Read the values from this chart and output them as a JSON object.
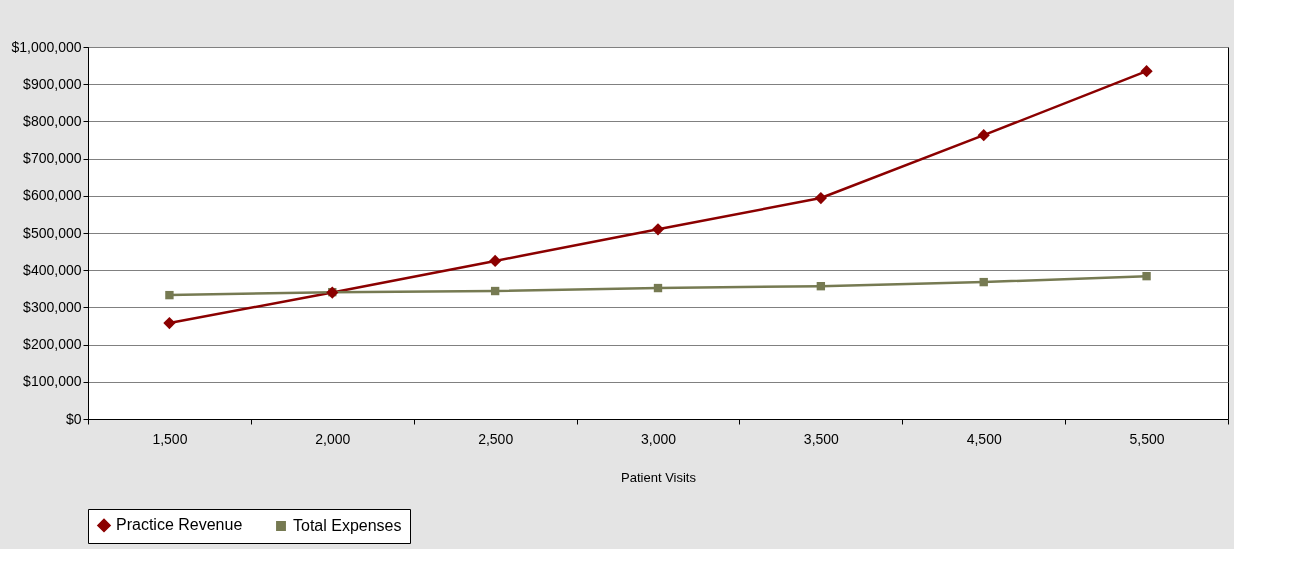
{
  "chart_data": {
    "type": "line",
    "xlabel": "Patient Visits",
    "categories": [
      "1,500",
      "2,000",
      "2,500",
      "3,000",
      "3,500",
      "4,500",
      "5,500"
    ],
    "series": [
      {
        "name": "Practice Revenue",
        "color": "#8b0000",
        "marker": "diamond",
        "values": [
          258000,
          340000,
          425000,
          510000,
          594000,
          763000,
          935000
        ]
      },
      {
        "name": "Total Expenses",
        "color": "#767a52",
        "marker": "square",
        "values": [
          333000,
          341000,
          344000,
          352000,
          357000,
          368000,
          384000
        ]
      }
    ],
    "ylim": [
      0,
      1000000
    ],
    "yticks": [
      {
        "value": 0,
        "label": "$0"
      },
      {
        "value": 100000,
        "label": "$100,000"
      },
      {
        "value": 200000,
        "label": "$200,000"
      },
      {
        "value": 300000,
        "label": "$300,000"
      },
      {
        "value": 400000,
        "label": "$400,000"
      },
      {
        "value": 500000,
        "label": "$500,000"
      },
      {
        "value": 600000,
        "label": "$600,000"
      },
      {
        "value": 700000,
        "label": "$700,000"
      },
      {
        "value": 800000,
        "label": "$800,000"
      },
      {
        "value": 900000,
        "label": "$900,000"
      },
      {
        "value": 1000000,
        "label": "$1,000,000"
      }
    ],
    "grid": "y",
    "legend": "bottom",
    "line_style": "solid"
  }
}
